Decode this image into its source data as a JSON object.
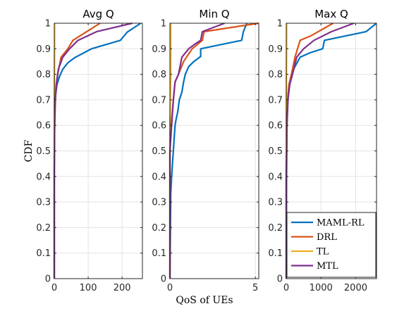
{
  "chart_data": [
    {
      "type": "line",
      "title": "Avg Q",
      "xlabel": "",
      "ylabel": "CDF",
      "xlim": [
        0,
        260
      ],
      "ylim": [
        0,
        1
      ],
      "xticks": [
        0,
        100,
        200
      ],
      "yticks": [
        0,
        0.1,
        0.2,
        0.3,
        0.4,
        0.5,
        0.6,
        0.7,
        0.8,
        0.9,
        1
      ],
      "grid": true,
      "series": [
        {
          "name": "MAML-RL",
          "color": "#0072BD",
          "x": [
            0,
            0,
            1,
            2,
            4,
            8,
            15,
            25,
            40,
            60,
            110,
            195,
            215,
            255
          ],
          "y": [
            0,
            0.4,
            0.6,
            0.68,
            0.72,
            0.76,
            0.79,
            0.82,
            0.845,
            0.865,
            0.9,
            0.933,
            0.965,
            1
          ]
        },
        {
          "name": "DRL",
          "color": "#D95319",
          "x": [
            0,
            0,
            1,
            3,
            5,
            10,
            20,
            40,
            55,
            135
          ],
          "y": [
            0,
            0.45,
            0.6,
            0.7,
            0.75,
            0.8,
            0.867,
            0.9,
            0.933,
            1
          ]
        },
        {
          "name": "TL",
          "color": "#EDB120",
          "x": [
            0,
            0,
            0.5,
            1,
            1
          ],
          "y": [
            0,
            0.6,
            0.8,
            0.95,
            1
          ]
        },
        {
          "name": "MTL",
          "color": "#7E2F8E",
          "x": [
            0,
            0,
            1,
            3,
            6,
            12,
            25,
            45,
            70,
            125,
            230
          ],
          "y": [
            0,
            0.4,
            0.6,
            0.7,
            0.76,
            0.82,
            0.867,
            0.9,
            0.933,
            0.967,
            1
          ]
        }
      ]
    },
    {
      "type": "line",
      "title": "Min Q",
      "xlabel": "QoS of UEs",
      "ylabel": "",
      "xlim": [
        0,
        5.2
      ],
      "ylim": [
        0,
        1
      ],
      "xticks": [
        0,
        5
      ],
      "grid": true,
      "series": [
        {
          "name": "MAML-RL",
          "color": "#0072BD",
          "x": [
            0,
            0.05,
            0.1,
            0.15,
            0.2,
            0.25,
            0.3,
            0.35,
            0.45,
            0.55,
            0.7,
            0.8,
            0.9,
            1.1,
            1.4,
            1.8,
            1.8,
            4.2,
            4.3,
            4.5
          ],
          "y": [
            0,
            0.33,
            0.4,
            0.45,
            0.5,
            0.55,
            0.6,
            0.62,
            0.65,
            0.7,
            0.73,
            0.77,
            0.8,
            0.83,
            0.85,
            0.87,
            0.9,
            0.933,
            0.967,
            1
          ]
        },
        {
          "name": "DRL",
          "color": "#D95319",
          "x": [
            0,
            0,
            0.1,
            0.2,
            0.3,
            0.5,
            0.8,
            1.3,
            1.9,
            2.0,
            5.2
          ],
          "y": [
            0,
            0.55,
            0.62,
            0.7,
            0.77,
            0.8,
            0.85,
            0.9,
            0.933,
            0.967,
            1
          ]
        },
        {
          "name": "TL",
          "color": "#EDB120",
          "x": [
            0,
            0,
            0.05,
            0.05
          ],
          "y": [
            0,
            0.6,
            0.8,
            1
          ]
        },
        {
          "name": "MTL",
          "color": "#7E2F8E",
          "x": [
            0,
            0,
            0.1,
            0.2,
            0.3,
            0.5,
            0.6,
            0.7,
            1.1,
            1.5,
            1.8,
            1.9,
            3.2
          ],
          "y": [
            0,
            0.5,
            0.6,
            0.7,
            0.77,
            0.8,
            0.833,
            0.867,
            0.9,
            0.92,
            0.933,
            0.967,
            1
          ]
        }
      ]
    },
    {
      "type": "line",
      "title": "Max Q",
      "xlabel": "",
      "ylabel": "",
      "xlim": [
        0,
        2600
      ],
      "ylim": [
        0,
        1
      ],
      "xticks": [
        0,
        1000,
        2000
      ],
      "grid": true,
      "legend": {
        "position": "bottom-right",
        "entries": [
          "MAML-RL",
          "DRL",
          "TL",
          "MTL"
        ]
      },
      "series": [
        {
          "name": "MAML-RL",
          "color": "#0072BD",
          "x": [
            0,
            10,
            20,
            40,
            80,
            150,
            250,
            400,
            700,
            1050,
            1100,
            2300,
            2600
          ],
          "y": [
            0,
            0.4,
            0.6,
            0.7,
            0.76,
            0.8,
            0.83,
            0.867,
            0.885,
            0.9,
            0.933,
            0.967,
            1
          ]
        },
        {
          "name": "DRL",
          "color": "#D95319",
          "x": [
            0,
            0,
            15,
            40,
            80,
            150,
            250,
            400,
            700,
            1350
          ],
          "y": [
            0,
            0.45,
            0.6,
            0.7,
            0.76,
            0.8,
            0.867,
            0.933,
            0.95,
            1
          ]
        },
        {
          "name": "TL",
          "color": "#EDB120",
          "x": [
            0,
            0,
            5,
            10,
            10
          ],
          "y": [
            0,
            0.6,
            0.8,
            0.95,
            1
          ]
        },
        {
          "name": "MTL",
          "color": "#7E2F8E",
          "x": [
            0,
            0,
            20,
            50,
            100,
            180,
            300,
            500,
            800,
            1300,
            1950
          ],
          "y": [
            0,
            0.4,
            0.6,
            0.7,
            0.76,
            0.8,
            0.867,
            0.9,
            0.933,
            0.967,
            1
          ]
        }
      ]
    }
  ]
}
